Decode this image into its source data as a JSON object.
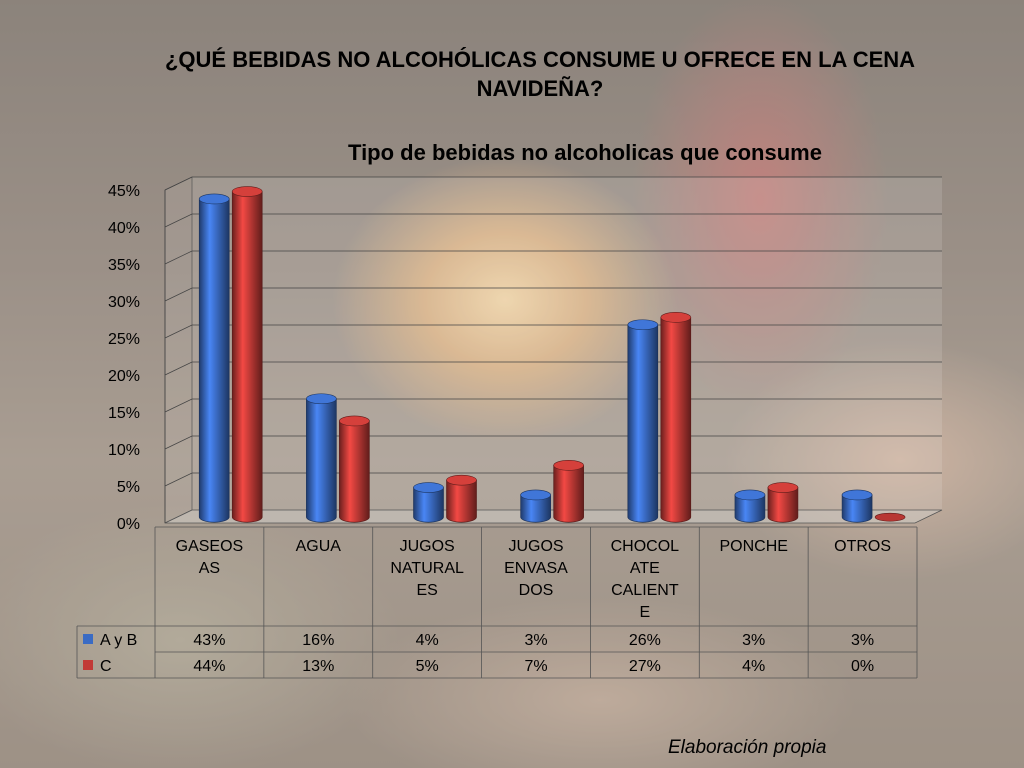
{
  "slide": {
    "title_line1": "¿QUÉ BEBIDAS NO ALCOHÓLICAS CONSUME U OFRECE EN LA CENA",
    "title_line2": "NAVIDEÑA?",
    "source": "Elaboración propia"
  },
  "chart_data": {
    "type": "bar",
    "title": "Tipo de bebidas no alcoholicas que consume",
    "categories": [
      [
        "GASEOS",
        "AS"
      ],
      [
        "AGUA"
      ],
      [
        "JUGOS",
        "NATURAL",
        "ES"
      ],
      [
        "JUGOS",
        "ENVASA",
        "DOS"
      ],
      [
        "CHOCOL",
        "ATE",
        "CALIENT",
        "E"
      ],
      [
        "PONCHE"
      ],
      [
        "OTROS"
      ]
    ],
    "series": [
      {
        "name": "A y B",
        "color": "#3a6bc4",
        "values": [
          43,
          16,
          4,
          3,
          26,
          3,
          3
        ],
        "labels": [
          "43%",
          "16%",
          "4%",
          "3%",
          "26%",
          "3%",
          "3%"
        ]
      },
      {
        "name": "C",
        "color": "#c23a36",
        "values": [
          44,
          13,
          5,
          7,
          27,
          4,
          0
        ],
        "labels": [
          "44%",
          "13%",
          "5%",
          "7%",
          "27%",
          "4%",
          "0%"
        ]
      }
    ],
    "ylim": [
      0,
      45
    ],
    "yticks": [
      "0%",
      "5%",
      "10%",
      "15%",
      "20%",
      "25%",
      "30%",
      "35%",
      "40%",
      "45%"
    ],
    "grid": true,
    "legend": "data-table"
  }
}
